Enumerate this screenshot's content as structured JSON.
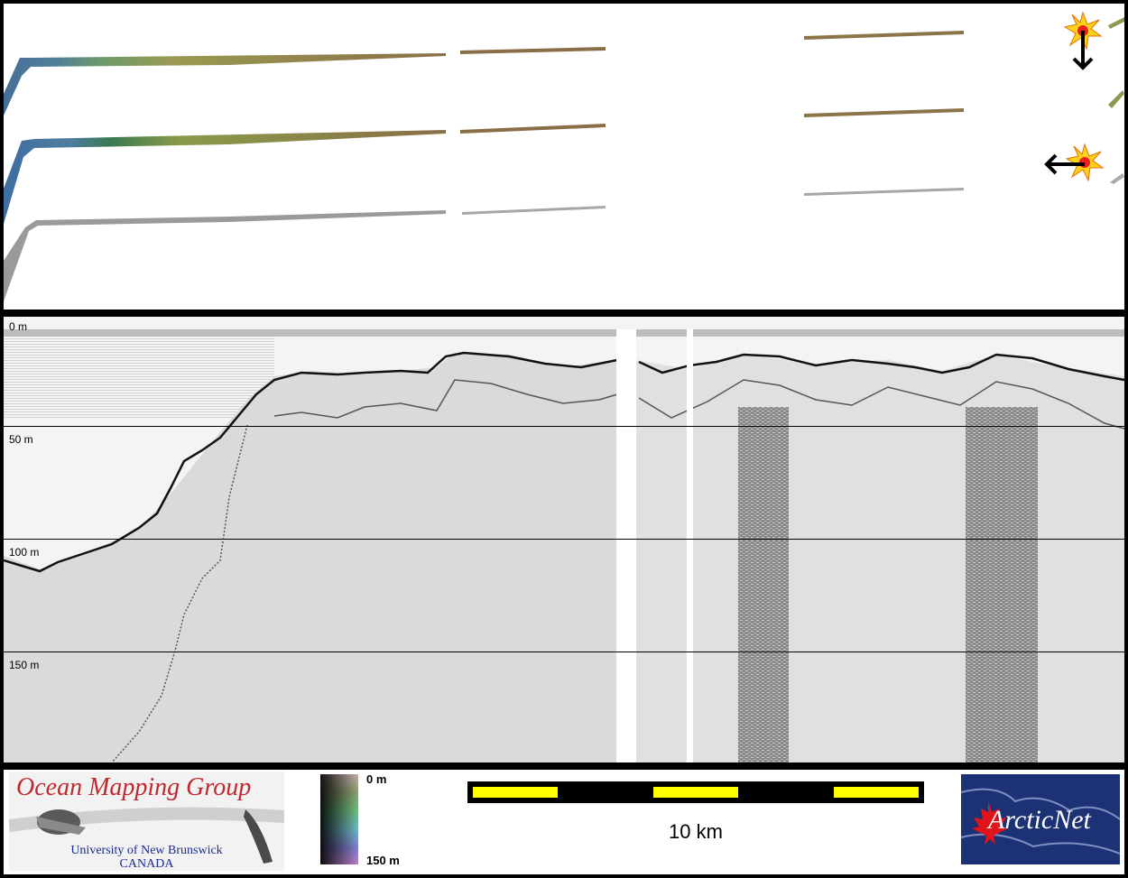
{
  "profile": {
    "depth_labels": [
      "0 m",
      "50 m",
      "100 m",
      "150 m"
    ]
  },
  "legend": {
    "depth_colorbar": {
      "top_label": "0 m",
      "bottom_label": "150 m"
    },
    "scale_bar": {
      "label": "10 km"
    }
  },
  "logos": {
    "omg": {
      "title": "Ocean Mapping Group",
      "line1": "University of New Brunswick",
      "line2": "CANADA"
    },
    "arcticnet": {
      "name": "ArcticNet"
    }
  },
  "colors": {
    "scale_yellow": "#ffff00",
    "omg_red": "#c0282e",
    "arctic_blue": "#1c3275",
    "ship_marker": "#ffd21a"
  }
}
